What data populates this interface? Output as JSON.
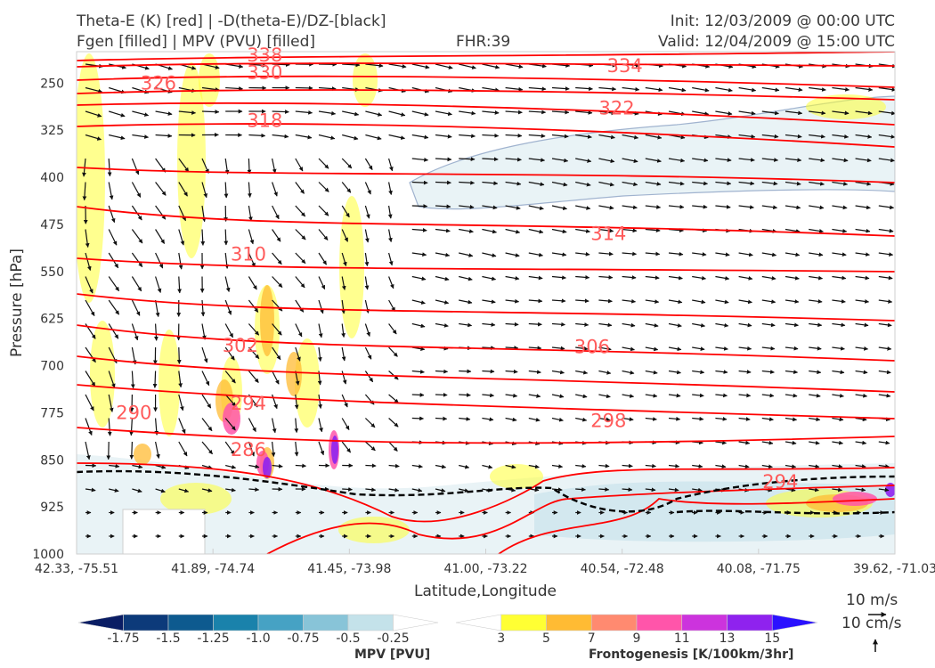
{
  "header": {
    "title_line1": "Theta-E (K) [red] | -D(theta-E)/DZ-[black]",
    "title_line2": "Fgen [filled] | MPV (PVU) [filled]",
    "fhr": "FHR:39",
    "init": "Init: 12/03/2009 @ 00:00 UTC",
    "valid": "Valid: 12/04/2009 @ 15:00 UTC"
  },
  "chart_data": {
    "type": "cross-section",
    "ylabel": "Pressure [hPa]",
    "xlabel": "Latitude,Longitude",
    "y_scale": "pressure (inverted)",
    "ylim": [
      1000,
      200
    ],
    "y_ticks": [
      "250",
      "325",
      "400",
      "475",
      "550",
      "625",
      "700",
      "775",
      "850",
      "925",
      "1000"
    ],
    "y_tick_values": [
      250,
      325,
      400,
      475,
      550,
      625,
      700,
      775,
      850,
      925,
      1000
    ],
    "x_ticks": [
      "42.33, -75.51",
      "41.89, -74.74",
      "41.45, -73.98",
      "41.00, -73.22",
      "40.54, -72.48",
      "40.08, -71.75",
      "39.62, -71.03"
    ],
    "theta_e_color": "#ff0000",
    "theta_e_label_color": "#ff5a5a",
    "contour_labels": [
      {
        "text": "338",
        "x": 0.23,
        "p": 206
      },
      {
        "text": "330",
        "x": 0.23,
        "p": 233
      },
      {
        "text": "334",
        "x": 0.67,
        "p": 223
      },
      {
        "text": "326",
        "x": 0.1,
        "p": 250
      },
      {
        "text": "322",
        "x": 0.66,
        "p": 290
      },
      {
        "text": "318",
        "x": 0.23,
        "p": 310
      },
      {
        "text": "314",
        "x": 0.65,
        "p": 490
      },
      {
        "text": "310",
        "x": 0.21,
        "p": 523
      },
      {
        "text": "306",
        "x": 0.63,
        "p": 670
      },
      {
        "text": "302",
        "x": 0.2,
        "p": 668
      },
      {
        "text": "298",
        "x": 0.65,
        "p": 788
      },
      {
        "text": "294",
        "x": 0.21,
        "p": 760
      },
      {
        "text": "290",
        "x": 0.07,
        "p": 775
      },
      {
        "text": "286",
        "x": 0.21,
        "p": 834
      },
      {
        "text": "294",
        "x": 0.86,
        "p": 885
      }
    ],
    "stability_line_color": "#000000",
    "mpv_fill": "#e9f3f6",
    "fgen_colors": [
      "#ffff33",
      "#ffbb33",
      "#ff8a70",
      "#ff55aa",
      "#cc33dd",
      "#8f22ee",
      "#2a11ff"
    ]
  },
  "colorbar_mpv": {
    "label": "MPV [PVU]",
    "ticks": [
      "-1.75",
      "-1.5",
      "-1.25",
      "-1.0",
      "-0.75",
      "-0.5",
      "-0.25"
    ],
    "colors": [
      "#0a1d64",
      "#0c3a7a",
      "#0d5a8f",
      "#1a82ab",
      "#46a2c4",
      "#88c4d8",
      "#c4e2ea",
      "#ffffff"
    ]
  },
  "colorbar_fgen": {
    "label": "Frontogenesis [K/100km/3hr]",
    "ticks": [
      "3",
      "5",
      "7",
      "9",
      "11",
      "13",
      "15"
    ],
    "colors": [
      "#ffffff",
      "#ffff33",
      "#ffbb33",
      "#ff8a70",
      "#ff55aa",
      "#cc33dd",
      "#8f22ee",
      "#2a11ff"
    ]
  },
  "vector_reference": {
    "horizontal": "10 m/s",
    "vertical": "10 cm/s"
  }
}
